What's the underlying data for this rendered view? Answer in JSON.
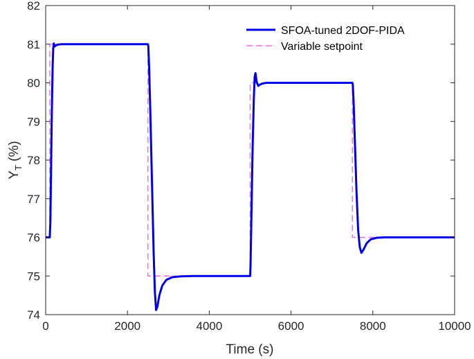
{
  "chart_data": {
    "type": "line",
    "xlabel": "Time (s)",
    "ylabel_main": "Y",
    "ylabel_sub": "T",
    "ylabel_unit": " (%)",
    "xlim": [
      0,
      10000
    ],
    "ylim": [
      74,
      82
    ],
    "xticks": [
      0,
      2000,
      4000,
      6000,
      8000,
      10000
    ],
    "xtick_labels": [
      "0",
      "2000",
      "4000",
      "6000",
      "8000",
      "10000"
    ],
    "yticks": [
      74,
      75,
      76,
      77,
      78,
      79,
      80,
      81,
      82
    ],
    "ytick_labels": [
      "74",
      "75",
      "76",
      "77",
      "78",
      "79",
      "80",
      "81",
      "82"
    ],
    "grid": false,
    "legend_position": "top-right",
    "series": [
      {
        "name": "SFOA-tuned 2DOF-PIDA",
        "color": "#0000e6",
        "style": "solid",
        "x": [
          0,
          100,
          115,
          130,
          150,
          170,
          185,
          200,
          220,
          250,
          300,
          400,
          600,
          2500,
          2510,
          2530,
          2560,
          2600,
          2640,
          2670,
          2700,
          2730,
          2780,
          2850,
          2950,
          3100,
          3300,
          3600,
          5000,
          5010,
          5030,
          5060,
          5090,
          5110,
          5130,
          5160,
          5200,
          5250,
          5300,
          5400,
          5600,
          7500,
          7510,
          7530,
          7560,
          7600,
          7640,
          7680,
          7720,
          7770,
          7850,
          7950,
          8100,
          8300,
          10000
        ],
        "y": [
          76,
          76,
          76.4,
          77.6,
          79.2,
          80.4,
          80.9,
          81.02,
          80.94,
          80.97,
          80.99,
          81,
          81,
          81,
          80.95,
          80.4,
          79.2,
          77.4,
          75.6,
          74.6,
          74.12,
          74.2,
          74.5,
          74.75,
          74.9,
          74.97,
          74.99,
          75,
          75,
          75.3,
          76.5,
          78.3,
          79.6,
          80.15,
          80.25,
          80.02,
          79.92,
          79.96,
          79.98,
          80,
          80,
          80,
          79.95,
          79.5,
          78.5,
          77.2,
          76.2,
          75.75,
          75.6,
          75.68,
          75.85,
          75.95,
          75.99,
          76,
          76
        ]
      },
      {
        "name": "Variable setpoint",
        "color": "#ff66ff",
        "style": "dashed",
        "x": [
          0,
          100,
          100,
          2500,
          2500,
          5000,
          5000,
          7500,
          7500,
          10000
        ],
        "y": [
          76,
          76,
          81,
          81,
          75,
          75,
          80,
          80,
          76,
          76
        ]
      }
    ]
  }
}
